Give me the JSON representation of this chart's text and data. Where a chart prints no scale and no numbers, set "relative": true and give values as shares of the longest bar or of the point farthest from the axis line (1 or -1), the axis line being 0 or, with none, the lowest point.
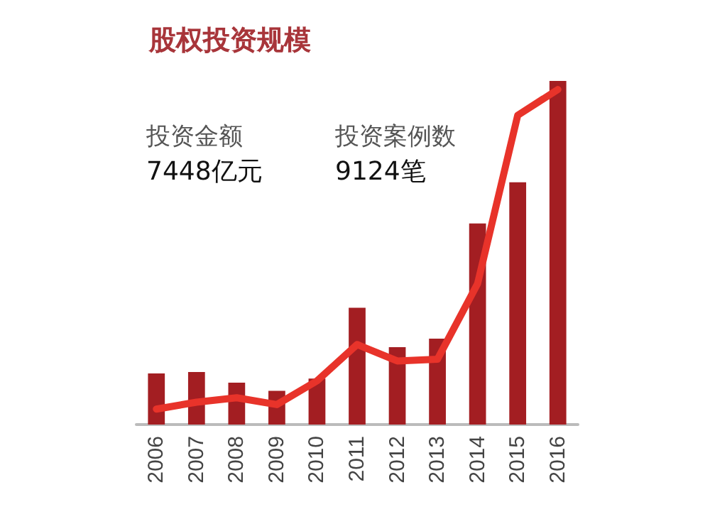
{
  "chart_data": {
    "type": "bar",
    "title": "股权投资规模",
    "relative": true,
    "categories": [
      "2006",
      "2007",
      "2008",
      "2009",
      "2010",
      "2011",
      "2012",
      "2013",
      "2014",
      "2015",
      "2016"
    ],
    "series": [
      {
        "name": null,
        "color": "#a31e22",
        "values": [
          0.149,
          0.153,
          0.122,
          0.098,
          0.134,
          0.34,
          0.225,
          0.25,
          0.585,
          0.705,
          1
        ]
      },
      {
        "name": null,
        "type": "line",
        "color": "#e8332a",
        "values": [
          0.045,
          0.065,
          0.078,
          0.058,
          0.127,
          0.233,
          0.185,
          0.19,
          0.41,
          0.9,
          0.975
        ]
      }
    ],
    "annotations": [
      "投资金额",
      "7448亿元",
      "投资案例数",
      "9124笔"
    ],
    "grid": false,
    "marker": "none"
  }
}
